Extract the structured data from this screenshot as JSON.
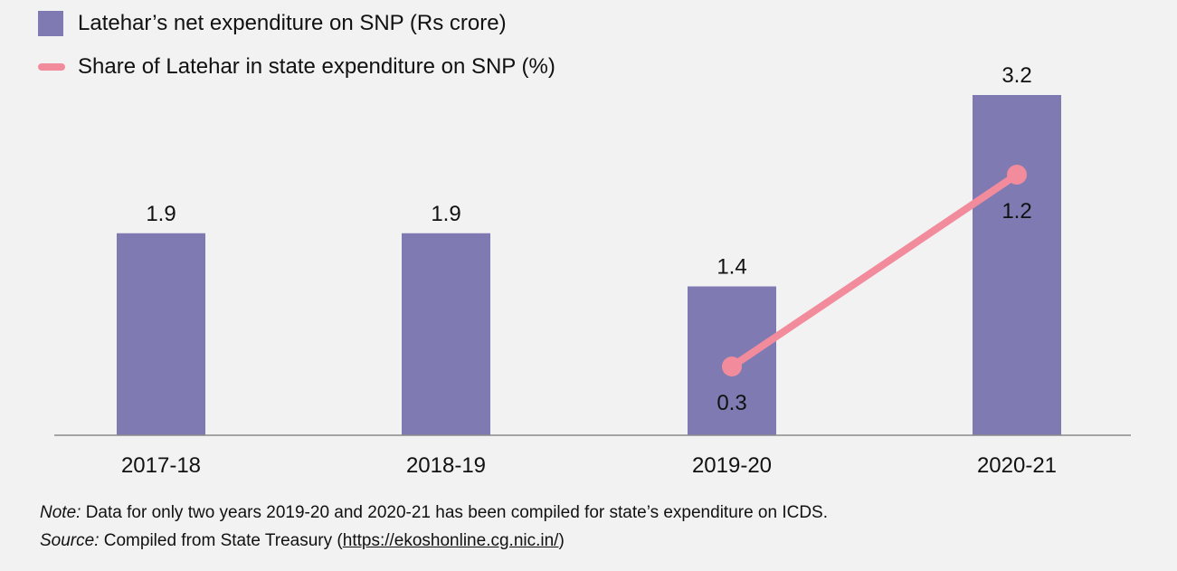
{
  "chart_data": {
    "type": "bar",
    "categories": [
      "2017-18",
      "2018-19",
      "2019-20",
      "2020-21"
    ],
    "series": [
      {
        "name": "Latehar’s net expenditure on SNP (Rs crore)",
        "kind": "bar",
        "color": "#7f7bb2",
        "values": [
          1.9,
          1.9,
          1.4,
          3.2
        ],
        "labels": [
          "1.9",
          "1.9",
          "1.4",
          "3.2"
        ]
      },
      {
        "name": "Share of Latehar in state expenditure on SNP (%)",
        "kind": "line",
        "color": "#f28c9c",
        "values": [
          null,
          null,
          0.3,
          1.2
        ],
        "labels": [
          "",
          "",
          "0.3",
          "1.2"
        ]
      }
    ],
    "ylim": [
      0,
      3.4
    ],
    "line_ylim": [
      0,
      1.6
    ],
    "grid": false,
    "legend": "top-left"
  },
  "notes": {
    "note_label": "Note:",
    "note_text": " Data for only two years 2019-20 and 2020-21 has been compiled for state’s expenditure on ICDS.",
    "source_label": "Source:",
    "source_text": " Compiled from State Treasury (",
    "source_url": "https://ekoshonline.cg.nic.in/",
    "source_end": ")"
  }
}
